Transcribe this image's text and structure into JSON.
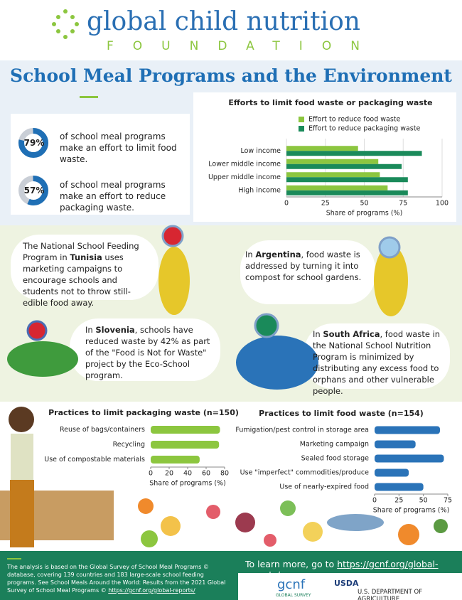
{
  "header": {
    "logo_title": "global child nutrition",
    "logo_subtitle": "FOUNDATION"
  },
  "title": "School Meal Programs and the Environment",
  "stats": [
    {
      "value": 79,
      "label": "79%",
      "text": "of school meal programs make an effort to limit food waste."
    },
    {
      "value": 57,
      "label": "57%",
      "text": "of school meal programs make an effort to reduce packaging waste."
    }
  ],
  "chart_data": [
    {
      "type": "bar",
      "orientation": "horizontal",
      "title": "Efforts to limit food waste or packaging waste",
      "categories": [
        "Low income",
        "Lower middle income",
        "Upper middle income",
        "High income"
      ],
      "series": [
        {
          "name": "Effort to reduce food waste",
          "color": "#8cc63f",
          "values": [
            46,
            59,
            60,
            65
          ]
        },
        {
          "name": "Effort to reduce packaging waste",
          "color": "#1a8a5a",
          "values": [
            87,
            74,
            78,
            78
          ]
        }
      ],
      "xlim": [
        0,
        100
      ],
      "xticks": [
        0,
        25,
        50,
        75,
        100
      ],
      "xlabel": "Share of programs (%)",
      "grid": true
    },
    {
      "type": "bar",
      "orientation": "horizontal",
      "title": "Practices to limit packaging waste (n=150)",
      "categories": [
        "Reuse of bags/containers",
        "Recycling",
        "Use of compostable materials"
      ],
      "values": [
        75,
        74,
        53
      ],
      "color": "#8cc63f",
      "xlim": [
        0,
        80
      ],
      "xticks": [
        0,
        20,
        40,
        60,
        80
      ],
      "xlabel": "Share of programs (%)",
      "grid": false
    },
    {
      "type": "bar",
      "orientation": "horizontal",
      "title": "Practices to limit food waste (n=154)",
      "categories": [
        "Fumigation/pest control in storage area",
        "Marketing campaign",
        "Sealed food storage",
        "Use \"imperfect\" commodities/produce",
        "Use of nearly-expired food"
      ],
      "values": [
        67,
        42,
        71,
        35,
        50
      ],
      "color": "#2a73b8",
      "xlim": [
        0,
        75
      ],
      "xticks": [
        0,
        25,
        50,
        75
      ],
      "xlabel": "Share of programs (%)",
      "grid": false
    }
  ],
  "stories": [
    {
      "before": "The National School Feeding Program in ",
      "country": "Tunisia",
      "after": " uses marketing campaigns to encourage schools and students not to throw still-edible food away."
    },
    {
      "before": "In ",
      "country": "Argentina",
      "after": ", food waste is addressed by turning it into compost for school gardens."
    },
    {
      "before": "In ",
      "country": "Slovenia",
      "after": ", schools have reduced waste by 42% as part of the \"Food is Not for Waste\" project by the Eco-School program."
    },
    {
      "before": "In ",
      "country": "South Africa",
      "after": ", food waste in the National School Nutrition Program is minimized by distributing any excess food to orphans and other vulnerable people."
    }
  ],
  "footer": {
    "note": "The analysis is based on the Global Survey of School Meal Programs © database, covering 139 countries and 183 large-scale school feeding programs. See School Meals Around the World: Results from the 2021 Global Survey of School Meal Programs © ",
    "note_link": "https://gcnf.org/global-reports/",
    "learn_more": "To learn more, go to ",
    "link": "https://gcnf.org/global-reports/",
    "gcnf": "gcnf",
    "global_survey": "GLOBAL SURVEY",
    "usda": "USDA",
    "usda_name": "U.S. DEPARTMENT OF AGRICULTURE"
  }
}
